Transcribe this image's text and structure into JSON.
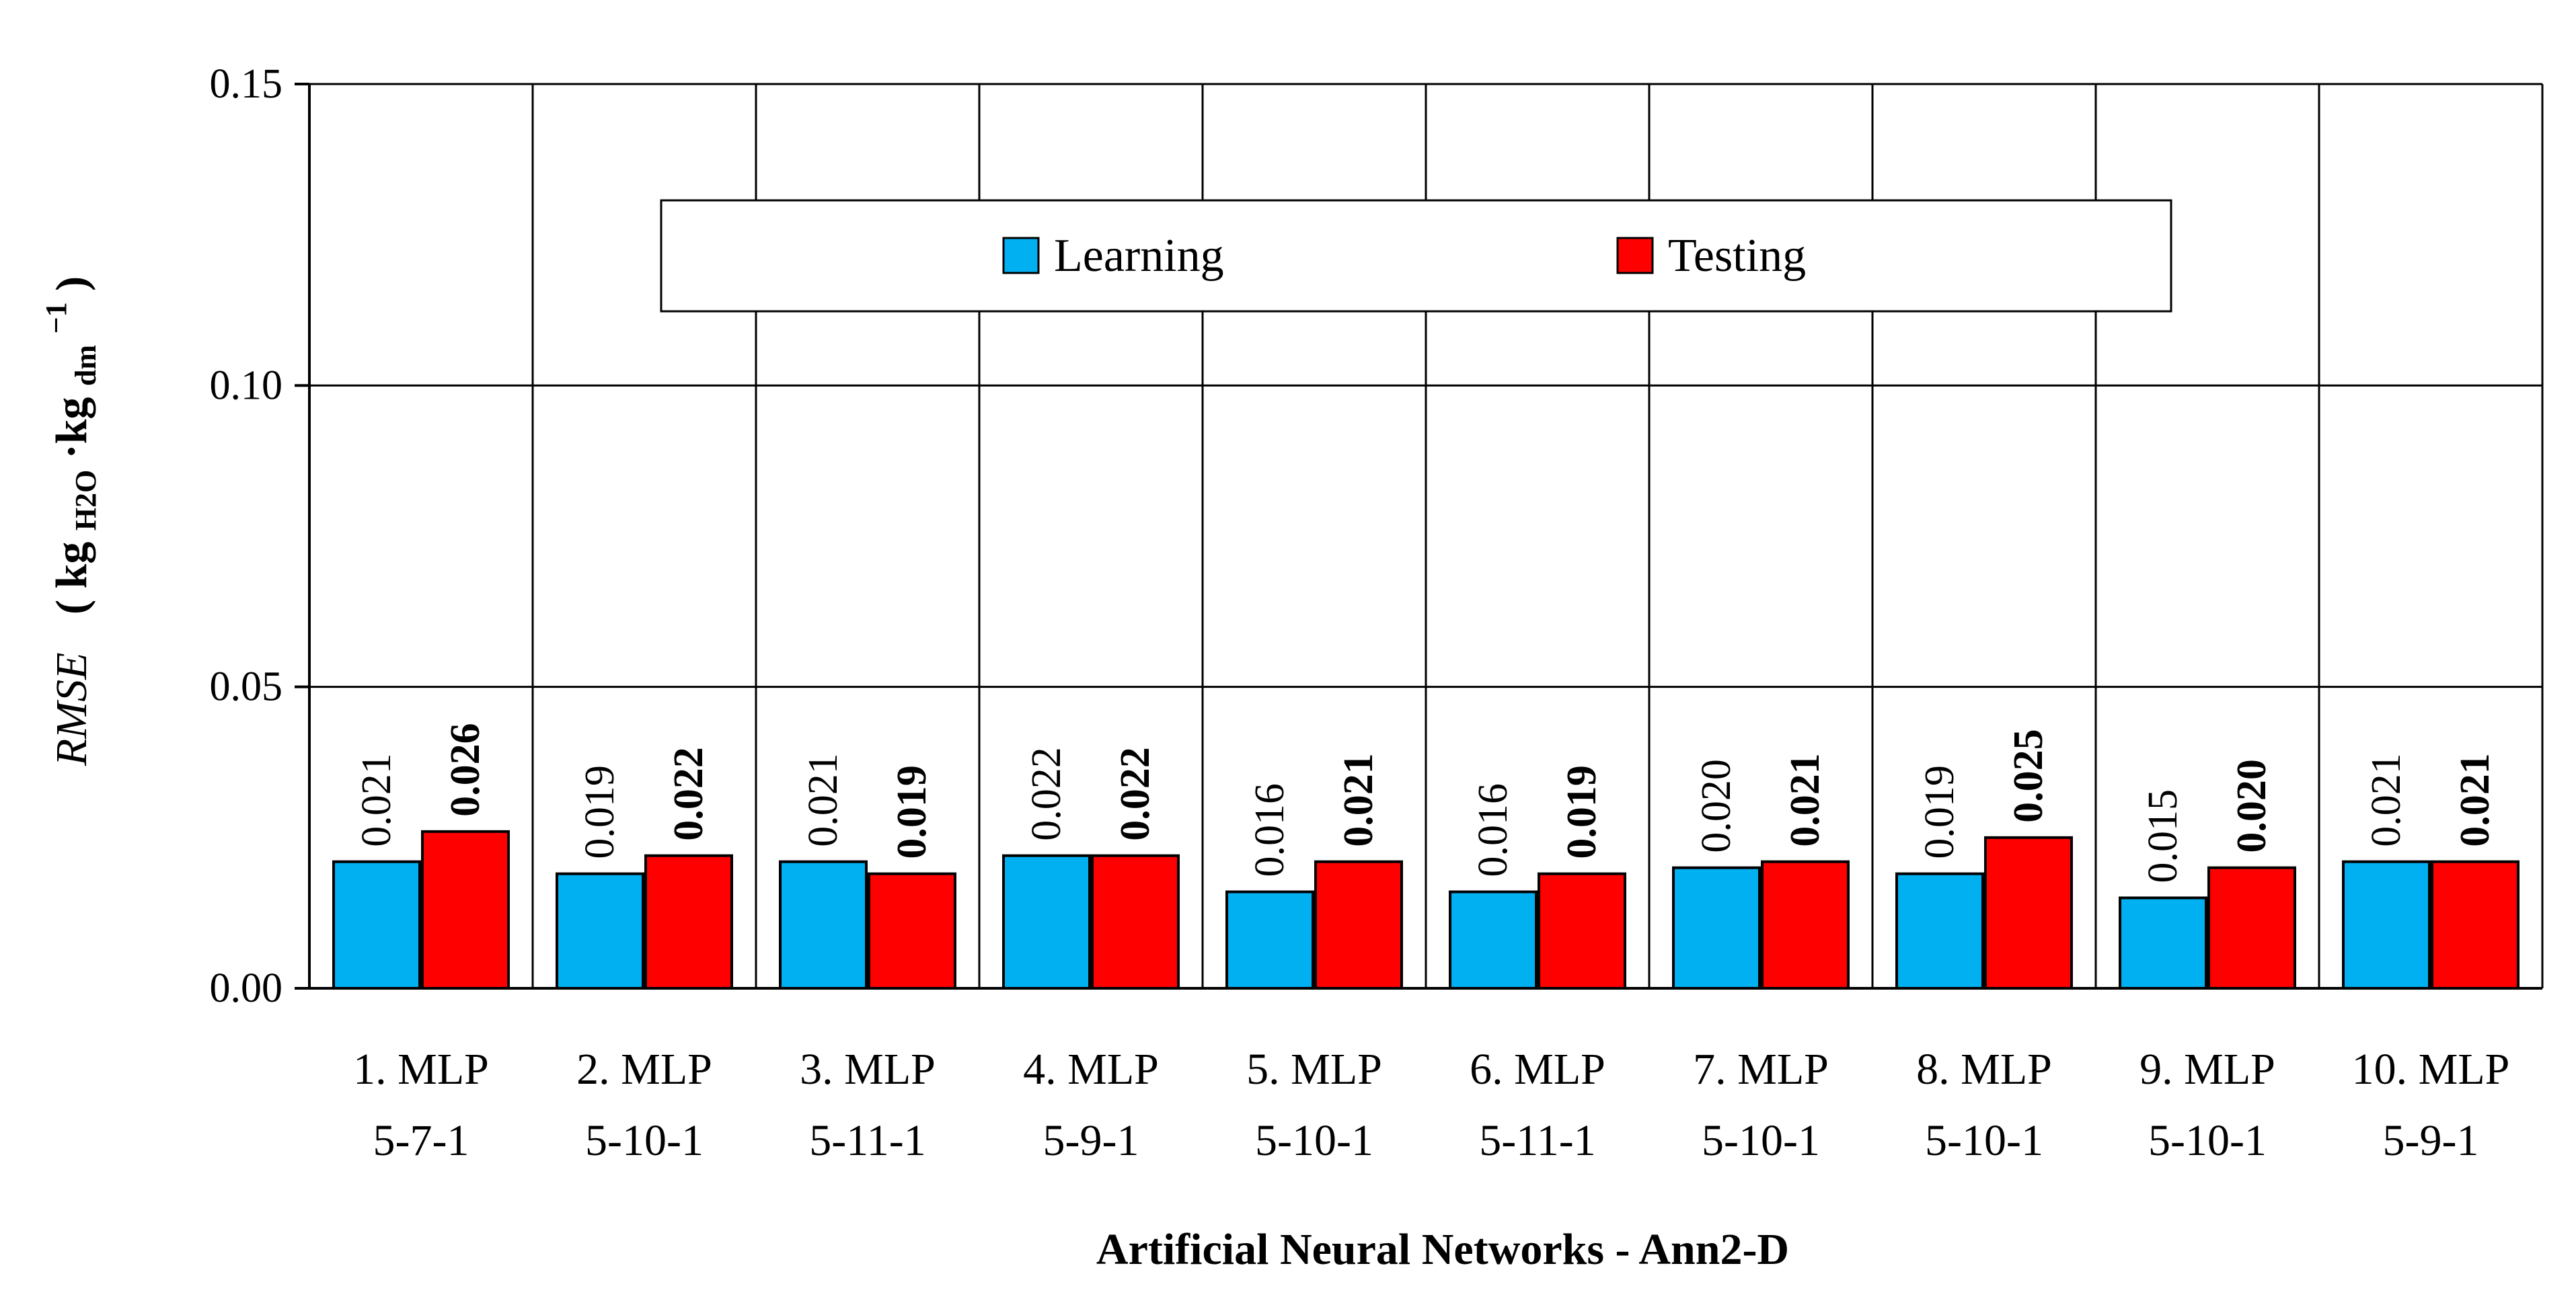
{
  "chart_data": {
    "type": "bar",
    "title": "",
    "xlabel": "Artificial Neural Networks - Ann2-D",
    "ylabel": "RMSE (kgH2O·kgdm−1)",
    "ylabel_parts": {
      "var": "RMSE",
      "open": "( kg",
      "sub1": "H2O",
      "dot": "·kg",
      "sub2": "dm",
      "sup": "−1",
      "close": ")"
    },
    "ylim": [
      0,
      0.15
    ],
    "yticks": [
      "0.00",
      "0.05",
      "0.10",
      "0.15"
    ],
    "ytick_values": [
      0,
      0.05,
      0.1,
      0.15
    ],
    "grid": true,
    "legend_position": "top-center",
    "categories": [
      [
        "1. MLP",
        "5-7-1"
      ],
      [
        "2. MLP",
        "5-10-1"
      ],
      [
        "3. MLP",
        "5-11-1"
      ],
      [
        "4. MLP",
        "5-9-1"
      ],
      [
        "5. MLP",
        "5-10-1"
      ],
      [
        "6. MLP",
        "5-11-1"
      ],
      [
        "7. MLP",
        "5-10-1"
      ],
      [
        "8. MLP",
        "5-10-1"
      ],
      [
        "9. MLP",
        "5-10-1"
      ],
      [
        "10. MLP",
        "5-9-1"
      ]
    ],
    "series": [
      {
        "name": "Learning",
        "color": "#00b0f0",
        "values": [
          0.021,
          0.019,
          0.021,
          0.022,
          0.016,
          0.016,
          0.02,
          0.019,
          0.015,
          0.021
        ],
        "labels": [
          "0.021",
          "0.019",
          "0.021",
          "0.022",
          "0.016",
          "0.016",
          "0.020",
          "0.019",
          "0.015",
          "0.021"
        ],
        "label_bold": false
      },
      {
        "name": "Testing",
        "color": "#ff0000",
        "values": [
          0.026,
          0.022,
          0.019,
          0.022,
          0.021,
          0.019,
          0.021,
          0.025,
          0.02,
          0.021
        ],
        "labels": [
          "0.026",
          "0.022",
          "0.019",
          "0.022",
          "0.021",
          "0.019",
          "0.021",
          "0.025",
          "0.020",
          "0.021"
        ],
        "label_bold": true
      }
    ]
  }
}
